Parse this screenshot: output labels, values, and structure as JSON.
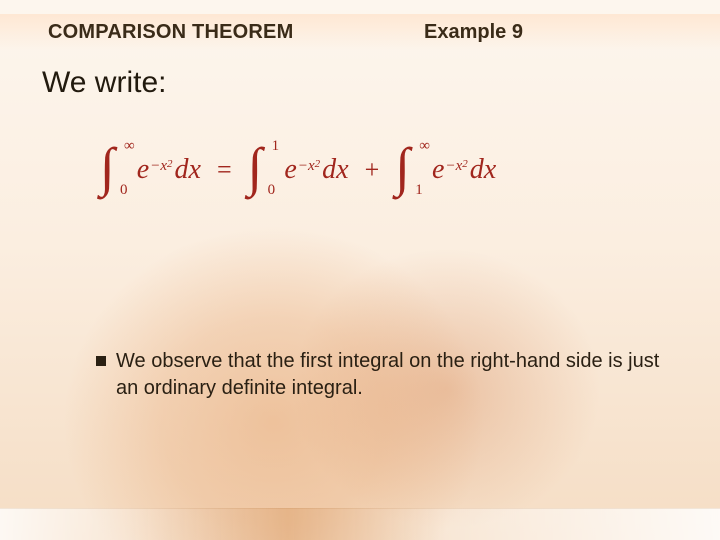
{
  "header": {
    "title": "COMPARISON THEOREM",
    "example_label": "Example 9"
  },
  "lead": "We write:",
  "equation": {
    "terms": [
      {
        "lower": "0",
        "upper": "∞",
        "integrand_base": "e",
        "integrand_exp_prefix": "−x",
        "integrand_exp_power": "2",
        "differential": "dx"
      },
      {
        "lower": "0",
        "upper": "1",
        "integrand_base": "e",
        "integrand_exp_prefix": "−x",
        "integrand_exp_power": "2",
        "differential": "dx"
      },
      {
        "lower": "1",
        "upper": "∞",
        "integrand_base": "e",
        "integrand_exp_prefix": "−x",
        "integrand_exp_power": "2",
        "differential": "dx"
      }
    ],
    "op_eq": "=",
    "op_plus": "+",
    "color": "#a1261d",
    "fontsize_pt": 28
  },
  "bullet": {
    "text": "We observe that the first integral on the right-hand side is just an ordinary definite integral."
  },
  "palette": {
    "background_top": "#fdf6ee",
    "background_bottom": "#f5ddc4",
    "text": "#2a2013",
    "header_text": "#3a2b18"
  }
}
